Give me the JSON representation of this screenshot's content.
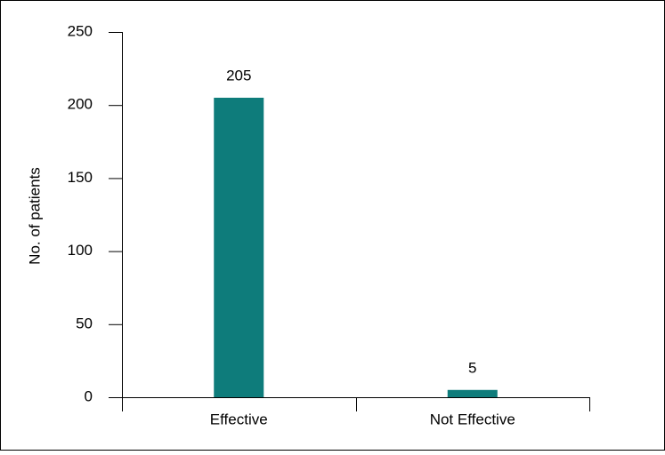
{
  "chart_data": {
    "type": "bar",
    "y_label": "No. of patients",
    "categories": [
      "Effective",
      "Not Effective"
    ],
    "values": [
      205,
      5
    ],
    "color": "#0e7c7b",
    "ylim": [
      0,
      250
    ],
    "yticks": [
      0,
      50,
      100,
      150,
      200,
      250
    ],
    "grid": false,
    "data_labels": true
  }
}
